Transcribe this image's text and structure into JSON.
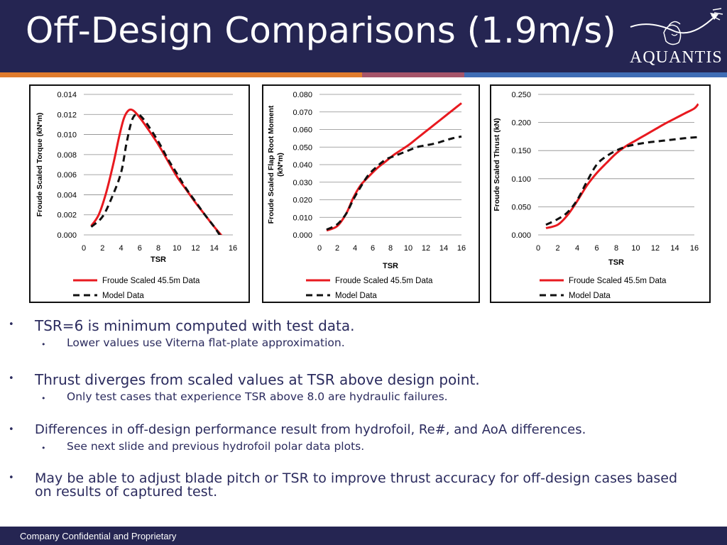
{
  "header": {
    "title": "Off-Design Comparisons (1.9m/s)",
    "logo_text": "AQUANTIS",
    "background_color": "#252552",
    "accent_colors": [
      "#e07b2c",
      "#a5546a",
      "#3f6db5"
    ]
  },
  "chart_data": [
    {
      "type": "line",
      "xlabel": "TSR",
      "ylabel": "Froude Scaled Torque (kN*m)",
      "xlim": [
        0,
        16
      ],
      "ylim": [
        0,
        0.014
      ],
      "xticks": [
        0,
        2,
        4,
        6,
        8,
        10,
        12,
        14,
        16
      ],
      "yticks": [
        "0.000",
        "0.002",
        "0.004",
        "0.006",
        "0.008",
        "0.010",
        "0.012",
        "0.014"
      ],
      "grid": "horizontal",
      "legend_position": "bottom",
      "series": [
        {
          "name": "Froude Scaled 45.5m Data",
          "color": "#e8191f",
          "style": "solid",
          "points": [
            [
              0.8,
              0.0009
            ],
            [
              1.6,
              0.002
            ],
            [
              2.4,
              0.0042
            ],
            [
              3.2,
              0.0072
            ],
            [
              3.8,
              0.0098
            ],
            [
              4.3,
              0.0116
            ],
            [
              4.8,
              0.0124
            ],
            [
              5.3,
              0.0124
            ],
            [
              6.0,
              0.0117
            ],
            [
              7.0,
              0.0104
            ],
            [
              8.0,
              0.009
            ],
            [
              9.0,
              0.0074
            ],
            [
              10.0,
              0.0058
            ],
            [
              11.0,
              0.0045
            ],
            [
              12.0,
              0.0032
            ],
            [
              13.0,
              0.002
            ],
            [
              14.0,
              0.0008
            ],
            [
              15.2,
              -0.0005
            ]
          ]
        },
        {
          "name": "Model Data",
          "color": "#111111",
          "style": "dashed",
          "points": [
            [
              0.8,
              0.0008
            ],
            [
              2.0,
              0.0018
            ],
            [
              3.0,
              0.0037
            ],
            [
              4.0,
              0.0062
            ],
            [
              4.6,
              0.0092
            ],
            [
              5.2,
              0.0115
            ],
            [
              5.8,
              0.012
            ],
            [
              6.6,
              0.0113
            ],
            [
              8.0,
              0.0093
            ],
            [
              9.0,
              0.0076
            ],
            [
              10.0,
              0.0061
            ],
            [
              11.0,
              0.0046
            ],
            [
              12.0,
              0.0033
            ],
            [
              13.0,
              0.002
            ],
            [
              14.0,
              0.0008
            ],
            [
              15.0,
              -0.0006
            ]
          ]
        }
      ]
    },
    {
      "type": "line",
      "xlabel": "TSR",
      "ylabel": "Froude Scaled Flap Root Moment (kN*m)",
      "xlim": [
        0,
        16
      ],
      "ylim": [
        0,
        0.08
      ],
      "xticks": [
        0,
        2,
        4,
        6,
        8,
        10,
        12,
        14,
        16
      ],
      "yticks": [
        "0.000",
        "0.010",
        "0.020",
        "0.030",
        "0.040",
        "0.050",
        "0.060",
        "0.070",
        "0.080"
      ],
      "grid": "horizontal",
      "legend_position": "bottom",
      "series": [
        {
          "name": "Froude Scaled 45.5m Data",
          "color": "#e8191f",
          "style": "solid",
          "points": [
            [
              0.8,
              0.0025
            ],
            [
              2.0,
              0.005
            ],
            [
              3.0,
              0.012
            ],
            [
              3.8,
              0.021
            ],
            [
              4.6,
              0.028
            ],
            [
              5.5,
              0.033
            ],
            [
              6.5,
              0.038
            ],
            [
              7.5,
              0.042
            ],
            [
              8.5,
              0.046
            ],
            [
              10.0,
              0.051
            ],
            [
              11.0,
              0.055
            ],
            [
              12.0,
              0.059
            ],
            [
              13.0,
              0.063
            ],
            [
              14.0,
              0.067
            ],
            [
              15.0,
              0.071
            ],
            [
              16.0,
              0.075
            ]
          ]
        },
        {
          "name": "Model Data",
          "color": "#111111",
          "style": "dashed",
          "points": [
            [
              0.8,
              0.003
            ],
            [
              2.0,
              0.006
            ],
            [
              3.0,
              0.012
            ],
            [
              3.8,
              0.02
            ],
            [
              4.6,
              0.027
            ],
            [
              5.5,
              0.034
            ],
            [
              6.5,
              0.039
            ],
            [
              7.5,
              0.043
            ],
            [
              8.5,
              0.045
            ],
            [
              10.0,
              0.048
            ],
            [
              11.0,
              0.05
            ],
            [
              12.0,
              0.051
            ],
            [
              13.0,
              0.052
            ],
            [
              14.0,
              0.0535
            ],
            [
              15.0,
              0.055
            ],
            [
              16.0,
              0.056
            ]
          ]
        }
      ]
    },
    {
      "type": "line",
      "xlabel": "TSR",
      "ylabel": "Froude Scaled Thrust (kN)",
      "xlim": [
        0,
        16
      ],
      "ylim": [
        0,
        0.25
      ],
      "xticks": [
        0,
        2,
        4,
        6,
        8,
        10,
        12,
        14,
        16
      ],
      "yticks": [
        "0.000",
        "0.050",
        "0.100",
        "0.150",
        "0.200",
        "0.250"
      ],
      "grid": "horizontal",
      "legend_position": "bottom",
      "series": [
        {
          "name": "Froude Scaled 45.5m Data",
          "color": "#e8191f",
          "style": "solid",
          "points": [
            [
              0.8,
              0.012
            ],
            [
              2.0,
              0.018
            ],
            [
              3.0,
              0.035
            ],
            [
              4.0,
              0.06
            ],
            [
              5.0,
              0.088
            ],
            [
              6.0,
              0.11
            ],
            [
              7.0,
              0.128
            ],
            [
              8.0,
              0.145
            ],
            [
              9.0,
              0.158
            ],
            [
              10.0,
              0.168
            ],
            [
              11.0,
              0.178
            ],
            [
              12.0,
              0.188
            ],
            [
              13.0,
              0.198
            ],
            [
              14.0,
              0.207
            ],
            [
              15.0,
              0.216
            ],
            [
              16.0,
              0.225
            ],
            [
              16.4,
              0.233
            ]
          ]
        },
        {
          "name": "Model Data",
          "color": "#111111",
          "style": "dashed",
          "points": [
            [
              0.8,
              0.018
            ],
            [
              2.0,
              0.028
            ],
            [
              3.0,
              0.04
            ],
            [
              4.0,
              0.062
            ],
            [
              5.0,
              0.095
            ],
            [
              6.0,
              0.125
            ],
            [
              7.0,
              0.14
            ],
            [
              8.0,
              0.15
            ],
            [
              9.0,
              0.157
            ],
            [
              10.0,
              0.161
            ],
            [
              11.0,
              0.164
            ],
            [
              12.0,
              0.166
            ],
            [
              13.0,
              0.168
            ],
            [
              14.0,
              0.17
            ],
            [
              15.0,
              0.172
            ],
            [
              16.4,
              0.174
            ]
          ]
        }
      ]
    }
  ],
  "bullets": [
    {
      "level": 1,
      "text": "TSR=6 is minimum computed with test data."
    },
    {
      "level": 2,
      "text": "Lower values use Viterna flat-plate approximation."
    },
    {
      "level": 1,
      "text": "Thrust diverges from scaled values at TSR above design point."
    },
    {
      "level": 2,
      "text": "Only test cases that experience TSR above 8.0 are hydraulic failures."
    },
    {
      "level": 1,
      "text": "Differences in off-design performance result from hydrofoil, Re#, and AoA differences."
    },
    {
      "level": 2,
      "text": "See next slide and previous hydrofoil polar data plots."
    },
    {
      "level": 1,
      "text": "May be able to adjust blade pitch or TSR to improve thrust accuracy for off-design cases based",
      "text2": "on results of captured test."
    }
  ],
  "footer": {
    "text": "Company Confidential and Proprietary"
  }
}
